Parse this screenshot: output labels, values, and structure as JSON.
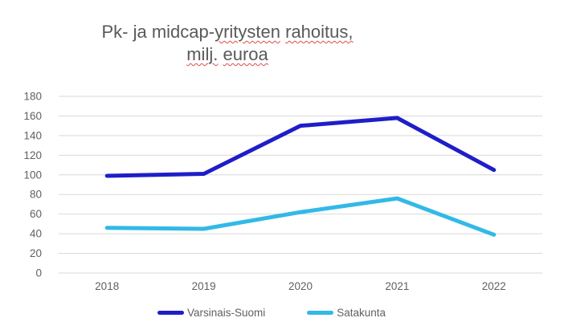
{
  "title": {
    "full_text": "Pk- ja midcap-yritysten rahoitus, milj. euroa",
    "lines": [
      {
        "segments": [
          {
            "text": "Pk- ja midcap-",
            "misspelled": false
          },
          {
            "text": "yritysten",
            "misspelled": true
          },
          {
            "text": " ",
            "misspelled": false
          },
          {
            "text": "rahoitus,",
            "misspelled": true
          }
        ]
      },
      {
        "segments": [
          {
            "text": "milj.",
            "misspelled": true
          },
          {
            "text": " ",
            "misspelled": false
          },
          {
            "text": "euroa",
            "misspelled": true
          }
        ]
      }
    ]
  },
  "chart_data": {
    "type": "line",
    "title": "Pk- ja midcap-yritysten rahoitus, milj. euroa",
    "categories": [
      "2018",
      "2019",
      "2020",
      "2021",
      "2022"
    ],
    "series": [
      {
        "name": "Varsinais-Suomi",
        "color": "#1e1ec9",
        "values": [
          99,
          101,
          150,
          158,
          105
        ]
      },
      {
        "name": "Satakunta",
        "color": "#32b9e7",
        "values": [
          46,
          45,
          62,
          76,
          39
        ]
      }
    ],
    "xlabel": "",
    "ylabel": "",
    "ylim": [
      0,
      180
    ],
    "ytick_step": 20,
    "yticks": [
      0,
      20,
      40,
      60,
      80,
      100,
      120,
      140,
      160,
      180
    ],
    "grid": true,
    "legend_position": "bottom"
  },
  "colors": {
    "background": "#ffffff",
    "gridline": "#d9d9d9",
    "axis_label": "#616161",
    "title_text": "#595959",
    "spellcheck_underline": "#dd4b4b",
    "series_varsinais_suomi": "#1e1ec9",
    "series_satakunta": "#32b9e7"
  }
}
